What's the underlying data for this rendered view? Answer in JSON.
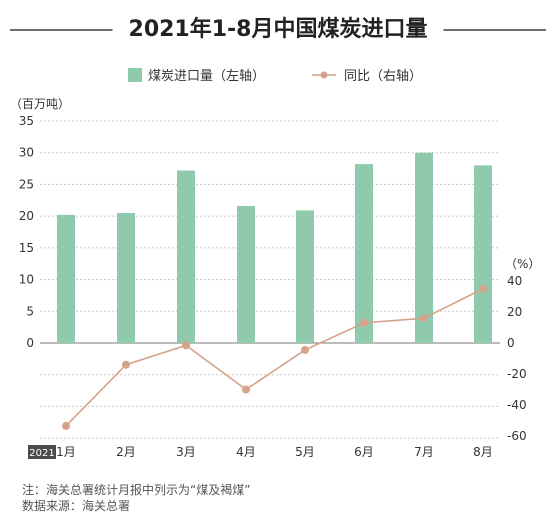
{
  "title": "2021年1-8月中国煤炭进口量",
  "legend": {
    "bar_label": "煤炭进口量（左轴）",
    "line_label": "同比（右轴）"
  },
  "year_badge": "2021",
  "notes": {
    "line1": "注：海关总署统计月报中列示为“煤及褐煤”",
    "line2": "数据来源：海关总署"
  },
  "colors": {
    "bar": "#8fcaac",
    "line": "#d4a38a",
    "grid": "#c8c8c8",
    "badge": "#4a4a4a"
  },
  "chart_data": {
    "type": "bar",
    "categories": [
      "1月",
      "2月",
      "3月",
      "4月",
      "5月",
      "6月",
      "7月",
      "8月"
    ],
    "series": [
      {
        "name": "煤炭进口量（左轴）",
        "type": "bar",
        "axis": "left",
        "values": [
          20.2,
          20.5,
          27.2,
          21.6,
          20.9,
          28.2,
          30.0,
          28.0
        ]
      },
      {
        "name": "同比（右轴）",
        "type": "line",
        "axis": "right",
        "values": [
          -53.5,
          -14,
          -1.5,
          -30,
          -4.5,
          13,
          16,
          35
        ]
      }
    ],
    "left_axis": {
      "label": "（百万吨）",
      "ticks": [
        "35",
        "30",
        "25",
        "20",
        "15",
        "10",
        "5",
        "0"
      ],
      "range": [
        -15,
        35
      ]
    },
    "right_axis": {
      "label": "（%）",
      "ticks": [
        "40",
        "20",
        "0",
        "-20",
        "-40",
        "-60"
      ],
      "range": [
        -60,
        40
      ]
    },
    "grid": true,
    "legend_position": "top"
  }
}
